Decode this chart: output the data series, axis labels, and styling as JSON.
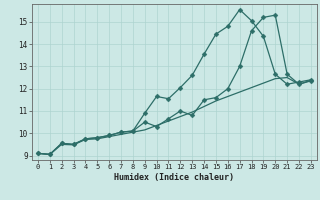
{
  "xlabel": "Humidex (Indice chaleur)",
  "bg_color": "#cce8e5",
  "grid_color": "#aed4d0",
  "line_color": "#2d6e68",
  "xlim": [
    -0.5,
    23.5
  ],
  "ylim": [
    8.8,
    15.8
  ],
  "xticks": [
    0,
    1,
    2,
    3,
    4,
    5,
    6,
    7,
    8,
    9,
    10,
    11,
    12,
    13,
    14,
    15,
    16,
    17,
    18,
    19,
    20,
    21,
    22,
    23
  ],
  "yticks": [
    9,
    10,
    11,
    12,
    13,
    14,
    15
  ],
  "line1_x": [
    0,
    1,
    2,
    3,
    4,
    5,
    6,
    7,
    8,
    9,
    10,
    11,
    12,
    13,
    14,
    15,
    16,
    17,
    18,
    19,
    20,
    21,
    22,
    23
  ],
  "line1_y": [
    9.1,
    9.05,
    9.55,
    9.5,
    9.75,
    9.8,
    9.9,
    10.05,
    10.1,
    10.9,
    11.65,
    11.55,
    12.05,
    12.6,
    13.55,
    14.45,
    14.8,
    15.55,
    15.05,
    14.35,
    12.65,
    12.2,
    12.3,
    12.4
  ],
  "line2_x": [
    0,
    1,
    2,
    3,
    4,
    5,
    6,
    7,
    8,
    9,
    10,
    11,
    12,
    13,
    14,
    15,
    16,
    17,
    18,
    19,
    20,
    21,
    22,
    23
  ],
  "line2_y": [
    9.1,
    9.05,
    9.55,
    9.5,
    9.75,
    9.8,
    9.9,
    10.05,
    10.1,
    10.5,
    10.3,
    10.65,
    11.0,
    10.8,
    11.5,
    11.6,
    12.0,
    13.0,
    14.6,
    15.2,
    15.3,
    12.65,
    12.2,
    12.35
  ],
  "line3_x": [
    0,
    1,
    2,
    3,
    4,
    5,
    6,
    7,
    8,
    9,
    10,
    11,
    12,
    13,
    14,
    15,
    16,
    17,
    18,
    19,
    20,
    21,
    22,
    23
  ],
  "line3_y": [
    9.1,
    9.05,
    9.5,
    9.48,
    9.72,
    9.75,
    9.85,
    9.95,
    10.05,
    10.15,
    10.35,
    10.55,
    10.75,
    10.95,
    11.2,
    11.45,
    11.65,
    11.85,
    12.05,
    12.25,
    12.45,
    12.5,
    12.2,
    12.38
  ]
}
